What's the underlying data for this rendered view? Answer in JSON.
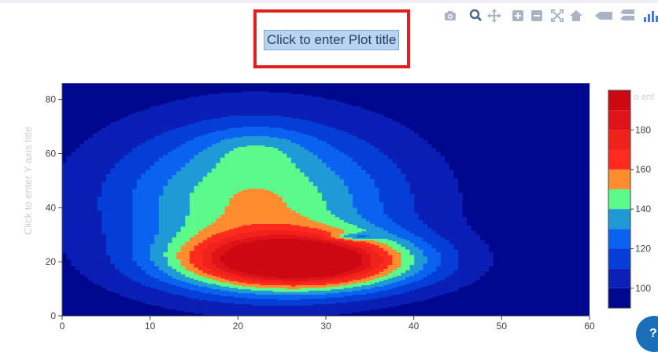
{
  "plot": {
    "title": "Click to enter Plot title",
    "yaxis_title": "Click to enter Y axis title",
    "colorbar_title_partial": "o ent"
  },
  "modebar": {
    "buttons": [
      "camera-icon",
      "zoom-icon",
      "pan-icon",
      "zoom-in-icon",
      "zoom-out-icon",
      "autoscale-icon",
      "home-icon",
      "hover-closest-icon",
      "hover-compare-icon",
      "plotly-logo-icon"
    ]
  },
  "help": {
    "label": "?"
  },
  "chart_data": {
    "type": "contour",
    "x_ticks": [
      "0",
      "10",
      "20",
      "30",
      "40",
      "50",
      "60"
    ],
    "y_ticks": [
      "0",
      "20",
      "40",
      "60",
      "80"
    ],
    "xlim": [
      0,
      60
    ],
    "ylim": [
      0,
      86
    ],
    "colorbar": {
      "ticks": [
        "100",
        "120",
        "140",
        "160",
        "180"
      ],
      "range": [
        90,
        200
      ],
      "levels": [
        {
          "from": 90,
          "to": 100,
          "color": "#00078f"
        },
        {
          "from": 100,
          "to": 110,
          "color": "#0a1fb5"
        },
        {
          "from": 110,
          "to": 120,
          "color": "#053ed6"
        },
        {
          "from": 120,
          "to": 130,
          "color": "#0a62f0"
        },
        {
          "from": 130,
          "to": 140,
          "color": "#1f9ad6"
        },
        {
          "from": 140,
          "to": 150,
          "color": "#5cfa8a"
        },
        {
          "from": 150,
          "to": 160,
          "color": "#ff8c2e"
        },
        {
          "from": 160,
          "to": 170,
          "color": "#ff2a1e"
        },
        {
          "from": 170,
          "to": 180,
          "color": "#f0201a"
        },
        {
          "from": 180,
          "to": 190,
          "color": "#e01318"
        },
        {
          "from": 190,
          "to": 200,
          "color": "#cc0812"
        }
      ]
    },
    "peak": {
      "x": 27,
      "y": 20,
      "value": 198
    },
    "secondary_ring": {
      "x": 33,
      "y": 29,
      "inner_value": 150
    },
    "grid": false
  }
}
